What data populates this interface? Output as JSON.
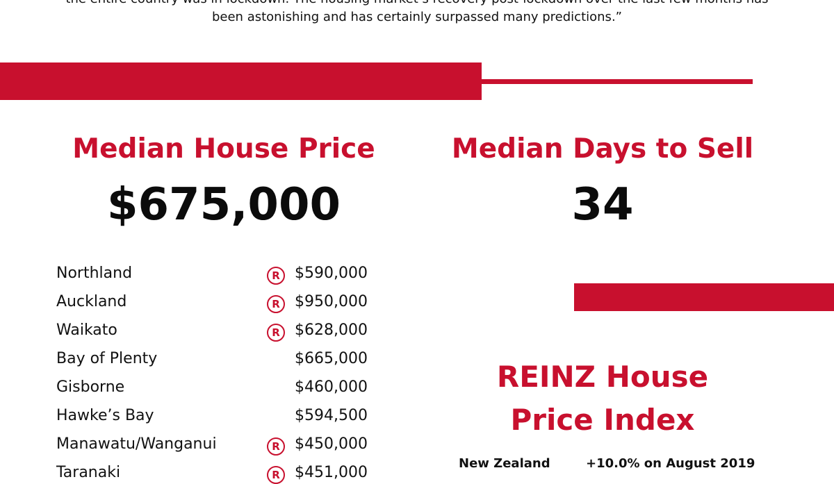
{
  "quote": {
    "lines": [
      "the entire country was in lockdown. The housing market’s recovery post-lockdown over the last few months has",
      "been astonishing and has certainly surpassed many predictions.”"
    ]
  },
  "median_price": {
    "title": "Median House Price",
    "value": "$675,000"
  },
  "median_days": {
    "title": "Median Days to Sell",
    "value": "34"
  },
  "record_icon": "R",
  "regions": [
    {
      "name": "Northland",
      "price": "$590,000",
      "record": true
    },
    {
      "name": "Auckland",
      "price": "$950,000",
      "record": true
    },
    {
      "name": "Waikato",
      "price": "$628,000",
      "record": true
    },
    {
      "name": "Bay of Plenty",
      "price": "$665,000",
      "record": false
    },
    {
      "name": "Gisborne",
      "price": "$460,000",
      "record": false
    },
    {
      "name": "Hawke’s Bay",
      "price": "$594,500",
      "record": false
    },
    {
      "name": "Manawatu/Wanganui",
      "price": "$450,000",
      "record": true
    },
    {
      "name": "Taranaki",
      "price": "$451,000",
      "record": true
    }
  ],
  "hpi": {
    "title_lines": [
      "REINZ House",
      "Price Index"
    ],
    "rows": [
      {
        "region": "New Zealand",
        "change": "+10.0% on August 2019"
      }
    ]
  }
}
